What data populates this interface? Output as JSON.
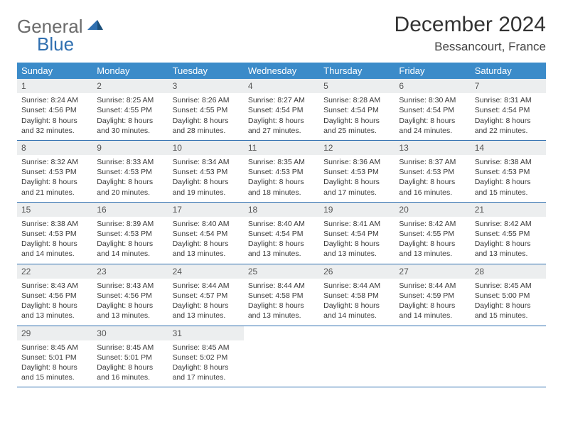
{
  "logo": {
    "word1": "General",
    "word2": "Blue"
  },
  "title": "December 2024",
  "location": "Bessancourt, France",
  "colors": {
    "header_bg": "#3b8bc9",
    "header_text": "#ffffff",
    "row_border": "#2f6fb0",
    "daynum_bg": "#eceeef",
    "logo_gray": "#6b6b6b",
    "logo_blue": "#2f6fb0"
  },
  "weekdays": [
    "Sunday",
    "Monday",
    "Tuesday",
    "Wednesday",
    "Thursday",
    "Friday",
    "Saturday"
  ],
  "weeks": [
    [
      {
        "n": "1",
        "sr": "8:24 AM",
        "ss": "4:56 PM",
        "dl": "8 hours and 32 minutes."
      },
      {
        "n": "2",
        "sr": "8:25 AM",
        "ss": "4:55 PM",
        "dl": "8 hours and 30 minutes."
      },
      {
        "n": "3",
        "sr": "8:26 AM",
        "ss": "4:55 PM",
        "dl": "8 hours and 28 minutes."
      },
      {
        "n": "4",
        "sr": "8:27 AM",
        "ss": "4:54 PM",
        "dl": "8 hours and 27 minutes."
      },
      {
        "n": "5",
        "sr": "8:28 AM",
        "ss": "4:54 PM",
        "dl": "8 hours and 25 minutes."
      },
      {
        "n": "6",
        "sr": "8:30 AM",
        "ss": "4:54 PM",
        "dl": "8 hours and 24 minutes."
      },
      {
        "n": "7",
        "sr": "8:31 AM",
        "ss": "4:54 PM",
        "dl": "8 hours and 22 minutes."
      }
    ],
    [
      {
        "n": "8",
        "sr": "8:32 AM",
        "ss": "4:53 PM",
        "dl": "8 hours and 21 minutes."
      },
      {
        "n": "9",
        "sr": "8:33 AM",
        "ss": "4:53 PM",
        "dl": "8 hours and 20 minutes."
      },
      {
        "n": "10",
        "sr": "8:34 AM",
        "ss": "4:53 PM",
        "dl": "8 hours and 19 minutes."
      },
      {
        "n": "11",
        "sr": "8:35 AM",
        "ss": "4:53 PM",
        "dl": "8 hours and 18 minutes."
      },
      {
        "n": "12",
        "sr": "8:36 AM",
        "ss": "4:53 PM",
        "dl": "8 hours and 17 minutes."
      },
      {
        "n": "13",
        "sr": "8:37 AM",
        "ss": "4:53 PM",
        "dl": "8 hours and 16 minutes."
      },
      {
        "n": "14",
        "sr": "8:38 AM",
        "ss": "4:53 PM",
        "dl": "8 hours and 15 minutes."
      }
    ],
    [
      {
        "n": "15",
        "sr": "8:38 AM",
        "ss": "4:53 PM",
        "dl": "8 hours and 14 minutes."
      },
      {
        "n": "16",
        "sr": "8:39 AM",
        "ss": "4:53 PM",
        "dl": "8 hours and 14 minutes."
      },
      {
        "n": "17",
        "sr": "8:40 AM",
        "ss": "4:54 PM",
        "dl": "8 hours and 13 minutes."
      },
      {
        "n": "18",
        "sr": "8:40 AM",
        "ss": "4:54 PM",
        "dl": "8 hours and 13 minutes."
      },
      {
        "n": "19",
        "sr": "8:41 AM",
        "ss": "4:54 PM",
        "dl": "8 hours and 13 minutes."
      },
      {
        "n": "20",
        "sr": "8:42 AM",
        "ss": "4:55 PM",
        "dl": "8 hours and 13 minutes."
      },
      {
        "n": "21",
        "sr": "8:42 AM",
        "ss": "4:55 PM",
        "dl": "8 hours and 13 minutes."
      }
    ],
    [
      {
        "n": "22",
        "sr": "8:43 AM",
        "ss": "4:56 PM",
        "dl": "8 hours and 13 minutes."
      },
      {
        "n": "23",
        "sr": "8:43 AM",
        "ss": "4:56 PM",
        "dl": "8 hours and 13 minutes."
      },
      {
        "n": "24",
        "sr": "8:44 AM",
        "ss": "4:57 PM",
        "dl": "8 hours and 13 minutes."
      },
      {
        "n": "25",
        "sr": "8:44 AM",
        "ss": "4:58 PM",
        "dl": "8 hours and 13 minutes."
      },
      {
        "n": "26",
        "sr": "8:44 AM",
        "ss": "4:58 PM",
        "dl": "8 hours and 14 minutes."
      },
      {
        "n": "27",
        "sr": "8:44 AM",
        "ss": "4:59 PM",
        "dl": "8 hours and 14 minutes."
      },
      {
        "n": "28",
        "sr": "8:45 AM",
        "ss": "5:00 PM",
        "dl": "8 hours and 15 minutes."
      }
    ],
    [
      {
        "n": "29",
        "sr": "8:45 AM",
        "ss": "5:01 PM",
        "dl": "8 hours and 15 minutes."
      },
      {
        "n": "30",
        "sr": "8:45 AM",
        "ss": "5:01 PM",
        "dl": "8 hours and 16 minutes."
      },
      {
        "n": "31",
        "sr": "8:45 AM",
        "ss": "5:02 PM",
        "dl": "8 hours and 17 minutes."
      },
      null,
      null,
      null,
      null
    ]
  ],
  "labels": {
    "sunrise": "Sunrise:",
    "sunset": "Sunset:",
    "daylight": "Daylight:"
  }
}
